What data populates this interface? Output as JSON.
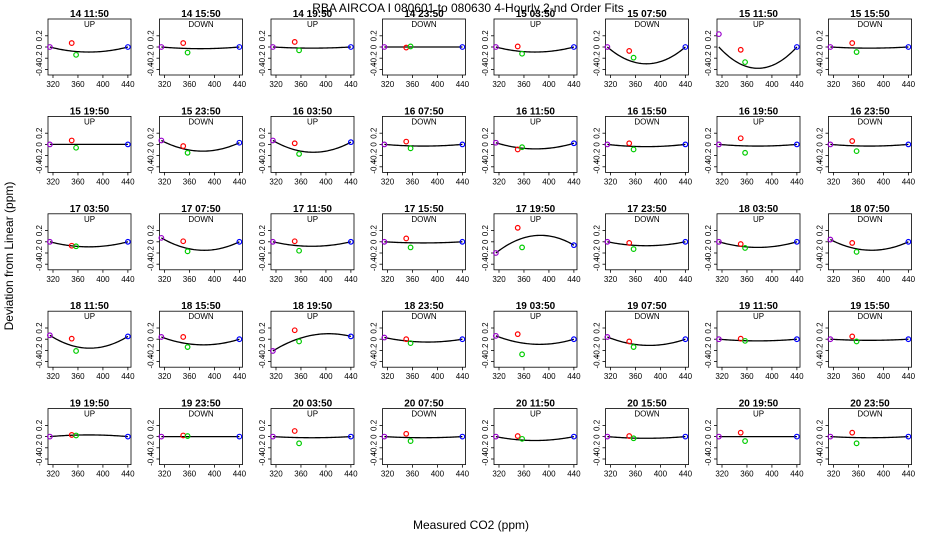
{
  "chart_data": {
    "type": "scatter",
    "title": "RBA   AIRCOA I   080601 to 080630   4-Hourly 2-nd Order Fits",
    "xlabel": "Measured CO2 (ppm)",
    "ylabel": "Deviation from Linear (ppm)",
    "xlim": [
      312,
      445
    ],
    "ylim": [
      -0.5,
      0.5
    ],
    "xticks": [
      320,
      360,
      400,
      440
    ],
    "yticks": [
      0.2,
      0.0,
      -0.2,
      -0.4
    ],
    "ytick_labels": [
      "0.2",
      "0",
      "-0.2",
      "-0.4"
    ],
    "x_standards": [
      315,
      350,
      357,
      440
    ],
    "grid": false,
    "legend": "none",
    "colors": {
      "low": "#9900cc",
      "mid1": "#ff0000",
      "mid2": "#00cc00",
      "high": "#0000ff",
      "fit": "#000000"
    },
    "panels": [
      {
        "title": "14 11:50",
        "dir": "UP",
        "fit": [
          0.0,
          -0.09,
          0.0
        ],
        "pts": [
          0.0,
          0.07,
          -0.14,
          0.0
        ]
      },
      {
        "title": "14 15:50",
        "dir": "DOWN",
        "fit": [
          0.0,
          -0.03,
          0.0
        ],
        "pts": [
          0.0,
          0.07,
          -0.1,
          0.0
        ]
      },
      {
        "title": "14 19:50",
        "dir": "UP",
        "fit": [
          0.0,
          -0.02,
          0.0
        ],
        "pts": [
          0.0,
          0.09,
          -0.06,
          0.0
        ]
      },
      {
        "title": "14 23:50",
        "dir": "DOWN",
        "fit": [
          0.0,
          0.0,
          0.0
        ],
        "pts": [
          0.0,
          -0.01,
          0.01,
          0.0
        ]
      },
      {
        "title": "15 03:50",
        "dir": "UP",
        "fit": [
          0.0,
          -0.09,
          0.0
        ],
        "pts": [
          0.0,
          0.01,
          -0.12,
          0.0
        ]
      },
      {
        "title": "15 07:50",
        "dir": "DOWN",
        "fit": [
          0.0,
          -0.3,
          0.0
        ],
        "pts": [
          0.0,
          -0.07,
          -0.19,
          0.0
        ]
      },
      {
        "title": "15 11:50",
        "dir": "UP",
        "fit": [
          0.0,
          -0.38,
          0.0
        ],
        "pts": [
          0.23,
          -0.05,
          -0.27,
          0.0
        ]
      },
      {
        "title": "15 15:50",
        "dir": "DOWN",
        "fit": [
          0.0,
          -0.02,
          0.0
        ],
        "pts": [
          0.0,
          0.07,
          -0.09,
          0.0
        ]
      },
      {
        "title": "15 19:50",
        "dir": "UP",
        "fit": [
          0.0,
          0.0,
          0.0
        ],
        "pts": [
          0.0,
          0.07,
          -0.06,
          0.0
        ]
      },
      {
        "title": "15 23:50",
        "dir": "DOWN",
        "fit": [
          0.07,
          -0.12,
          0.03
        ],
        "pts": [
          0.07,
          -0.03,
          -0.15,
          0.03
        ]
      },
      {
        "title": "16 03:50",
        "dir": "UP",
        "fit": [
          0.07,
          -0.14,
          0.04
        ],
        "pts": [
          0.07,
          0.02,
          -0.17,
          0.04
        ]
      },
      {
        "title": "16 07:50",
        "dir": "DOWN",
        "fit": [
          0.0,
          -0.03,
          0.0
        ],
        "pts": [
          0.0,
          0.05,
          -0.07,
          0.0
        ]
      },
      {
        "title": "16 11:50",
        "dir": "UP",
        "fit": [
          0.03,
          -0.08,
          0.02
        ],
        "pts": [
          0.03,
          -0.09,
          -0.05,
          0.02
        ]
      },
      {
        "title": "16 15:50",
        "dir": "DOWN",
        "fit": [
          0.0,
          -0.04,
          0.0
        ],
        "pts": [
          0.0,
          0.02,
          -0.09,
          0.0
        ]
      },
      {
        "title": "16 19:50",
        "dir": "UP",
        "fit": [
          0.0,
          -0.03,
          0.0
        ],
        "pts": [
          0.0,
          0.11,
          -0.15,
          0.0
        ]
      },
      {
        "title": "16 23:50",
        "dir": "DOWN",
        "fit": [
          0.0,
          -0.03,
          0.0
        ],
        "pts": [
          0.0,
          0.06,
          -0.12,
          0.0
        ]
      },
      {
        "title": "17 03:50",
        "dir": "UP",
        "fit": [
          0.0,
          -0.09,
          0.0
        ],
        "pts": [
          0.0,
          -0.07,
          -0.08,
          0.0
        ]
      },
      {
        "title": "17 07:50",
        "dir": "DOWN",
        "fit": [
          0.07,
          -0.15,
          0.0
        ],
        "pts": [
          0.07,
          0.01,
          -0.17,
          0.0
        ]
      },
      {
        "title": "17 11:50",
        "dir": "UP",
        "fit": [
          0.0,
          -0.08,
          0.0
        ],
        "pts": [
          0.0,
          0.01,
          -0.16,
          0.0
        ]
      },
      {
        "title": "17 15:50",
        "dir": "DOWN",
        "fit": [
          0.0,
          -0.02,
          0.0
        ],
        "pts": [
          0.0,
          0.06,
          -0.1,
          0.0
        ]
      },
      {
        "title": "17 19:50",
        "dir": "UP",
        "fit": [
          -0.2,
          0.11,
          -0.06
        ],
        "pts": [
          -0.2,
          0.25,
          -0.1,
          -0.06
        ]
      },
      {
        "title": "17 23:50",
        "dir": "DOWN",
        "fit": [
          0.0,
          -0.07,
          0.0
        ],
        "pts": [
          0.0,
          -0.02,
          -0.13,
          0.0
        ]
      },
      {
        "title": "18 03:50",
        "dir": "UP",
        "fit": [
          0.0,
          -0.1,
          0.0
        ],
        "pts": [
          0.0,
          -0.04,
          -0.11,
          0.0
        ]
      },
      {
        "title": "18 07:50",
        "dir": "DOWN",
        "fit": [
          0.04,
          -0.15,
          0.0
        ],
        "pts": [
          0.04,
          -0.02,
          -0.18,
          0.0
        ]
      },
      {
        "title": "18 11:50",
        "dir": "UP",
        "fit": [
          0.07,
          -0.16,
          0.05
        ],
        "pts": [
          0.07,
          0.01,
          -0.21,
          0.05
        ]
      },
      {
        "title": "18 15:50",
        "dir": "DOWN",
        "fit": [
          0.04,
          -0.1,
          0.0
        ],
        "pts": [
          0.04,
          0.04,
          -0.14,
          0.0
        ]
      },
      {
        "title": "18 19:50",
        "dir": "UP",
        "fit": [
          -0.21,
          0.07,
          0.05
        ],
        "pts": [
          -0.21,
          0.16,
          -0.04,
          0.05
        ]
      },
      {
        "title": "18 23:50",
        "dir": "DOWN",
        "fit": [
          0.03,
          -0.05,
          0.0
        ],
        "pts": [
          0.03,
          0.0,
          -0.07,
          0.0
        ]
      },
      {
        "title": "19 03:50",
        "dir": "UP",
        "fit": [
          0.06,
          -0.09,
          0.0
        ],
        "pts": [
          0.06,
          0.09,
          -0.27,
          0.0
        ]
      },
      {
        "title": "19 07:50",
        "dir": "DOWN",
        "fit": [
          0.04,
          -0.11,
          0.0
        ],
        "pts": [
          0.04,
          -0.04,
          -0.14,
          0.0
        ]
      },
      {
        "title": "19 11:50",
        "dir": "UP",
        "fit": [
          0.0,
          -0.03,
          0.0
        ],
        "pts": [
          0.0,
          0.01,
          -0.03,
          0.0
        ]
      },
      {
        "title": "19 15:50",
        "dir": "DOWN",
        "fit": [
          0.0,
          -0.02,
          0.0
        ],
        "pts": [
          0.0,
          0.05,
          -0.04,
          0.0
        ]
      },
      {
        "title": "19 19:50",
        "dir": "UP",
        "fit": [
          0.0,
          0.03,
          0.0
        ],
        "pts": [
          0.0,
          0.03,
          0.02,
          0.0
        ]
      },
      {
        "title": "19 23:50",
        "dir": "DOWN",
        "fit": [
          0.0,
          0.0,
          0.0
        ],
        "pts": [
          0.0,
          0.02,
          0.01,
          0.0
        ]
      },
      {
        "title": "20 03:50",
        "dir": "UP",
        "fit": [
          0.0,
          -0.02,
          0.0
        ],
        "pts": [
          0.0,
          0.1,
          -0.12,
          0.0
        ]
      },
      {
        "title": "20 07:50",
        "dir": "DOWN",
        "fit": [
          0.0,
          -0.02,
          0.0
        ],
        "pts": [
          0.0,
          0.05,
          -0.08,
          0.0
        ]
      },
      {
        "title": "20 11:50",
        "dir": "UP",
        "fit": [
          0.0,
          -0.07,
          0.0
        ],
        "pts": [
          0.0,
          0.01,
          -0.04,
          0.0
        ]
      },
      {
        "title": "20 15:50",
        "dir": "DOWN",
        "fit": [
          0.0,
          -0.03,
          0.0
        ],
        "pts": [
          0.0,
          0.01,
          -0.03,
          0.0
        ]
      },
      {
        "title": "20 19:50",
        "dir": "UP",
        "fit": [
          0.0,
          0.0,
          0.0
        ],
        "pts": [
          0.0,
          0.07,
          -0.08,
          0.0
        ]
      },
      {
        "title": "20 23:50",
        "dir": "DOWN",
        "fit": [
          0.0,
          -0.02,
          0.0
        ],
        "pts": [
          0.0,
          0.07,
          -0.12,
          0.0
        ]
      }
    ]
  }
}
